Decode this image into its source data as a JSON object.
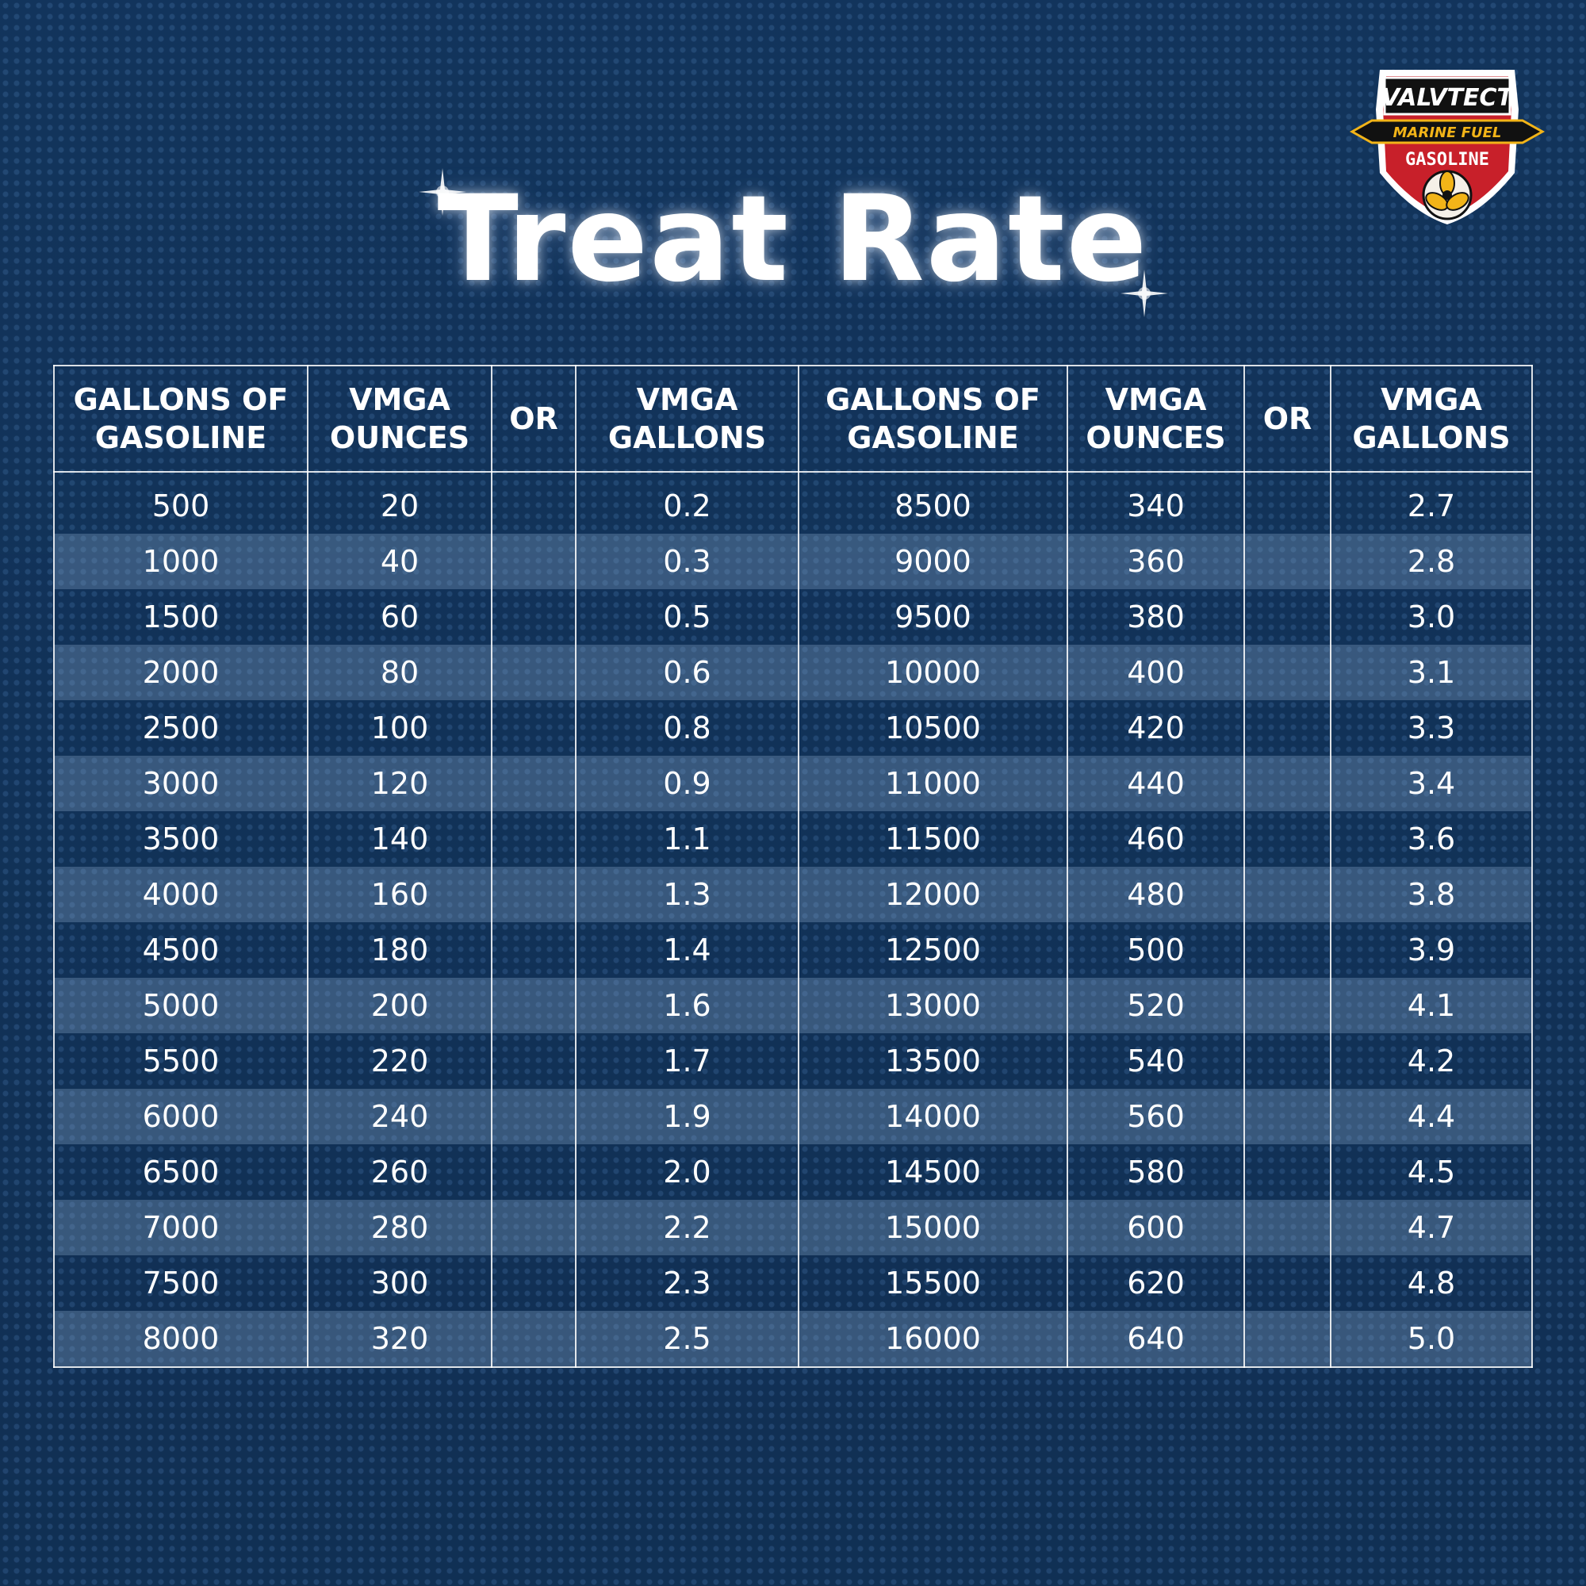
{
  "title": "Treat Rate",
  "logo": {
    "brand": "VALVTECT",
    "line1": "MARINE FUEL",
    "line2": "GASOLINE"
  },
  "colors": {
    "background": "#143a66",
    "logo_red": "#c8202a",
    "logo_gold": "#f2b418"
  },
  "headers": [
    "GALLONS OF GASOLINE",
    "VMGA OUNCES",
    "OR",
    "VMGA GALLONS",
    "GALLONS OF GASOLINE",
    "VMGA OUNCES",
    "OR",
    "VMGA GALLONS"
  ],
  "rows": [
    [
      "500",
      "20",
      "",
      "0.2",
      "8500",
      "340",
      "",
      "2.7"
    ],
    [
      "1000",
      "40",
      "",
      "0.3",
      "9000",
      "360",
      "",
      "2.8"
    ],
    [
      "1500",
      "60",
      "",
      "0.5",
      "9500",
      "380",
      "",
      "3.0"
    ],
    [
      "2000",
      "80",
      "",
      "0.6",
      "10000",
      "400",
      "",
      "3.1"
    ],
    [
      "2500",
      "100",
      "",
      "0.8",
      "10500",
      "420",
      "",
      "3.3"
    ],
    [
      "3000",
      "120",
      "",
      "0.9",
      "11000",
      "440",
      "",
      "3.4"
    ],
    [
      "3500",
      "140",
      "",
      "1.1",
      "11500",
      "460",
      "",
      "3.6"
    ],
    [
      "4000",
      "160",
      "",
      "1.3",
      "12000",
      "480",
      "",
      "3.8"
    ],
    [
      "4500",
      "180",
      "",
      "1.4",
      "12500",
      "500",
      "",
      "3.9"
    ],
    [
      "5000",
      "200",
      "",
      "1.6",
      "13000",
      "520",
      "",
      "4.1"
    ],
    [
      "5500",
      "220",
      "",
      "1.7",
      "13500",
      "540",
      "",
      "4.2"
    ],
    [
      "6000",
      "240",
      "",
      "1.9",
      "14000",
      "560",
      "",
      "4.4"
    ],
    [
      "6500",
      "260",
      "",
      "2.0",
      "14500",
      "580",
      "",
      "4.5"
    ],
    [
      "7000",
      "280",
      "",
      "2.2",
      "15000",
      "600",
      "",
      "4.7"
    ],
    [
      "7500",
      "300",
      "",
      "2.3",
      "15500",
      "620",
      "",
      "4.8"
    ],
    [
      "8000",
      "320",
      "",
      "2.5",
      "16000",
      "640",
      "",
      "5.0"
    ]
  ]
}
